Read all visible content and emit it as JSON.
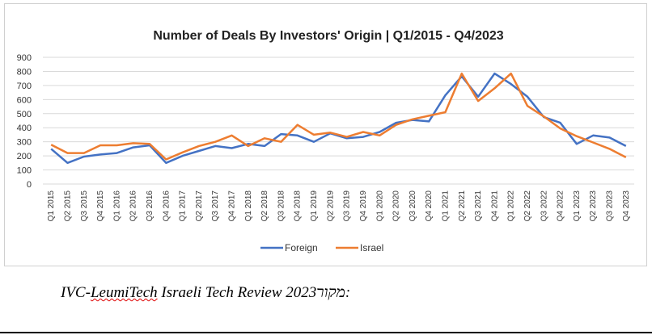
{
  "chart_data": {
    "type": "line",
    "title": "Number of Deals By Investors' Origin | Q1/2015 - Q4/2023",
    "xlabel": "",
    "ylabel": "",
    "ylim": [
      0,
      900
    ],
    "yticks": [
      0,
      100,
      200,
      300,
      400,
      500,
      600,
      700,
      800,
      900
    ],
    "grid": true,
    "legend_position": "bottom",
    "categories": [
      "Q1 2015",
      "Q2 2015",
      "Q3 2015",
      "Q4 2015",
      "Q1 2016",
      "Q2 2016",
      "Q3 2016",
      "Q4 2016",
      "Q1 2017",
      "Q2 2017",
      "Q3 2017",
      "Q4 2017",
      "Q1 2018",
      "Q2 2018",
      "Q3 2018",
      "Q4 2018",
      "Q1 2019",
      "Q2 2019",
      "Q3 2019",
      "Q4 2019",
      "Q1 2020",
      "Q2 2020",
      "Q3 2020",
      "Q4 2020",
      "Q1 2021",
      "Q2 2021",
      "Q3 2021",
      "Q4 2021",
      "Q1 2022",
      "Q2 2022",
      "Q3 2022",
      "Q4 2022",
      "Q1 2023",
      "Q2 2023",
      "Q3 2023",
      "Q4 2023"
    ],
    "series": [
      {
        "name": "Foreign",
        "color": "#4472C4",
        "values": [
          250,
          150,
          195,
          210,
          220,
          260,
          275,
          150,
          200,
          235,
          270,
          255,
          285,
          270,
          355,
          345,
          300,
          360,
          325,
          335,
          370,
          435,
          455,
          445,
          630,
          765,
          620,
          785,
          710,
          620,
          475,
          435,
          285,
          345,
          330,
          270
        ]
      },
      {
        "name": "Israel",
        "color": "#ED7D31",
        "values": [
          280,
          220,
          220,
          275,
          275,
          290,
          285,
          175,
          225,
          270,
          300,
          345,
          270,
          325,
          300,
          420,
          350,
          365,
          335,
          370,
          345,
          420,
          460,
          485,
          510,
          785,
          590,
          680,
          785,
          555,
          480,
          395,
          340,
          295,
          250,
          190
        ]
      }
    ]
  },
  "footer": {
    "source_prefix": "IVC-",
    "source_underlined": "LeumiTech",
    "source_rest": " Israeli Tech Review 2023",
    "source_label": " :מקור"
  }
}
